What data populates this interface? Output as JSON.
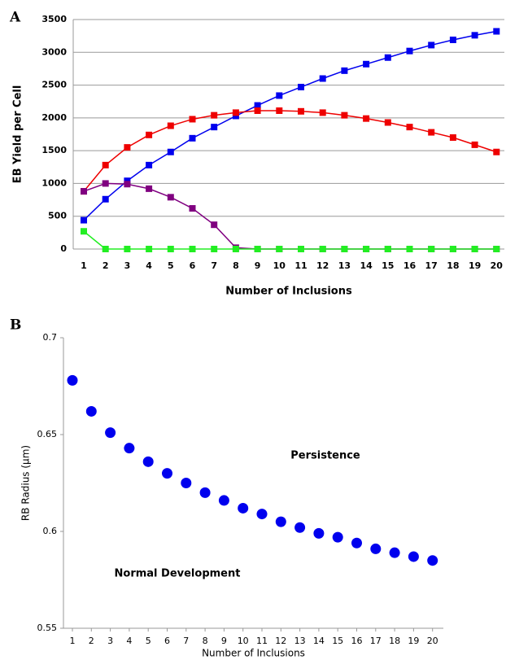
{
  "chart_data": [
    {
      "type": "line",
      "panel_label": "A",
      "ylabel": "EB Yield per Cell",
      "xlabel": "Number of Inclusions",
      "categories": [
        1,
        2,
        3,
        4,
        5,
        6,
        7,
        8,
        9,
        10,
        11,
        12,
        13,
        14,
        15,
        16,
        17,
        18,
        19,
        20
      ],
      "series": [
        {
          "color": "#0000ee",
          "values": [
            440,
            760,
            1040,
            1280,
            1480,
            1690,
            1860,
            2030,
            2190,
            2340,
            2470,
            2600,
            2720,
            2820,
            2920,
            3020,
            3110,
            3190,
            3260,
            3320
          ]
        },
        {
          "color": "#ee0000",
          "values": [
            880,
            1280,
            1550,
            1740,
            1880,
            1980,
            2040,
            2080,
            2110,
            2110,
            2100,
            2080,
            2040,
            1990,
            1930,
            1860,
            1780,
            1700,
            1590,
            1480
          ]
        },
        {
          "color": "#800080",
          "values": [
            880,
            1000,
            990,
            920,
            790,
            620,
            370,
            20,
            0,
            0,
            0,
            0,
            0,
            0,
            0,
            0,
            0,
            0,
            0,
            0
          ]
        },
        {
          "color": "#22ee22",
          "values": [
            270,
            0,
            0,
            0,
            0,
            0,
            0,
            0,
            0,
            0,
            0,
            0,
            0,
            0,
            0,
            0,
            0,
            0,
            0,
            0
          ]
        }
      ],
      "ylim": [
        0,
        3500
      ],
      "yticks": [
        0,
        500,
        1000,
        1500,
        2000,
        2500,
        3000,
        3500
      ],
      "grid": true
    },
    {
      "type": "scatter",
      "panel_label": "B",
      "ylabel": "RB Radius (µm)",
      "xlabel": "Number of Inclusions",
      "categories": [
        1,
        2,
        3,
        4,
        5,
        6,
        7,
        8,
        9,
        10,
        11,
        12,
        13,
        14,
        15,
        16,
        17,
        18,
        19,
        20
      ],
      "series": [
        {
          "color": "#0000ee",
          "values": [
            0.678,
            0.662,
            0.651,
            0.643,
            0.636,
            0.63,
            0.625,
            0.62,
            0.616,
            0.612,
            0.609,
            0.605,
            0.602,
            0.599,
            0.597,
            0.594,
            0.591,
            0.589,
            0.587,
            0.585
          ]
        }
      ],
      "annotations": [
        "Persistence",
        "Normal Development"
      ],
      "ylim": [
        0.55,
        0.7
      ],
      "yticks": [
        0.55,
        0.6,
        0.65,
        0.7
      ],
      "grid": false
    }
  ]
}
